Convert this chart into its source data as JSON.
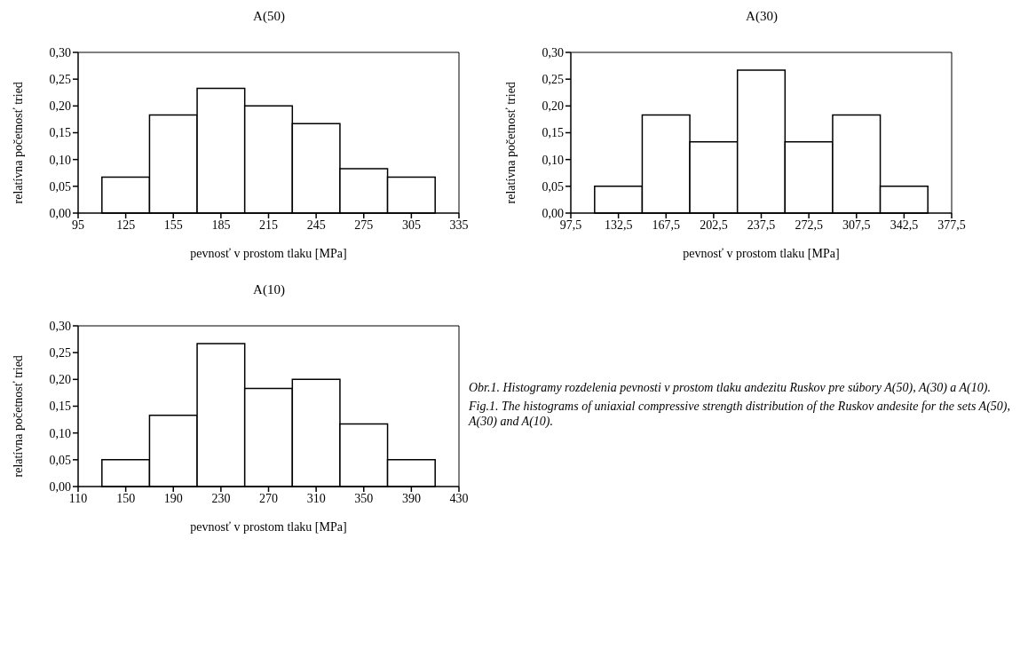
{
  "chart_data": [
    {
      "type": "histogram",
      "title": "A(50)",
      "xlabel": "pevnosť v prostom tlaku [MPa]",
      "ylabel": "relatívna početnosť tried",
      "bins": [
        110,
        140,
        170,
        200,
        230,
        260,
        290,
        320
      ],
      "values": [
        0.067,
        0.183,
        0.233,
        0.2,
        0.167,
        0.083,
        0.067
      ],
      "color": "#ffffff",
      "xlim": [
        95,
        335
      ],
      "xticks": [
        95,
        125,
        155,
        185,
        215,
        245,
        275,
        305,
        335
      ],
      "ylim": [
        0,
        0.3
      ],
      "yticks": [
        {
          "value": 0,
          "label": "0,00"
        },
        {
          "value": 0.05,
          "label": "0,05"
        },
        {
          "value": 0.1,
          "label": "0,10"
        },
        {
          "value": 0.15,
          "label": "0,15"
        },
        {
          "value": 0.2,
          "label": "0,20"
        },
        {
          "value": 0.25,
          "label": "0,25"
        },
        {
          "value": 0.3,
          "label": "0,30"
        }
      ],
      "grid": false
    },
    {
      "type": "histogram",
      "title": "A(30)",
      "xlabel": "pevnosť v prostom tlaku [MPa]",
      "ylabel": "relatívna početnosť tried",
      "bins": [
        115,
        150,
        185,
        220,
        255,
        290,
        325,
        360
      ],
      "values": [
        0.05,
        0.183,
        0.133,
        0.267,
        0.133,
        0.183,
        0.05
      ],
      "color": "#ffffff",
      "xlim": [
        97.5,
        377.5
      ],
      "xticks": [
        {
          "value": 97.5,
          "label": "97,5"
        },
        {
          "value": 132.5,
          "label": "132,5"
        },
        {
          "value": 167.5,
          "label": "167,5"
        },
        {
          "value": 202.5,
          "label": "202,5"
        },
        {
          "value": 237.5,
          "label": "237,5"
        },
        {
          "value": 272.5,
          "label": "272,5"
        },
        {
          "value": 307.5,
          "label": "307,5"
        },
        {
          "value": 342.5,
          "label": "342,5"
        },
        {
          "value": 377.5,
          "label": "377,5"
        }
      ],
      "ylim": [
        0,
        0.3
      ],
      "yticks": [
        {
          "value": 0,
          "label": "0,00"
        },
        {
          "value": 0.05,
          "label": "0,05"
        },
        {
          "value": 0.1,
          "label": "0,10"
        },
        {
          "value": 0.15,
          "label": "0,15"
        },
        {
          "value": 0.2,
          "label": "0,20"
        },
        {
          "value": 0.25,
          "label": "0,25"
        },
        {
          "value": 0.3,
          "label": "0,30"
        }
      ],
      "grid": false
    },
    {
      "type": "histogram",
      "title": "A(10)",
      "xlabel": "pevnosť v prostom tlaku [MPa]",
      "ylabel": "relatívna početnosť tried",
      "bins": [
        130,
        170,
        210,
        250,
        290,
        330,
        370,
        410
      ],
      "values": [
        0.05,
        0.133,
        0.267,
        0.183,
        0.2,
        0.117,
        0.05
      ],
      "color": "#ffffff",
      "xlim": [
        110,
        430
      ],
      "xticks": [
        110,
        150,
        190,
        230,
        270,
        310,
        350,
        390,
        430
      ],
      "ylim": [
        0,
        0.3
      ],
      "yticks": [
        {
          "value": 0,
          "label": "0,00"
        },
        {
          "value": 0.05,
          "label": "0,05"
        },
        {
          "value": 0.1,
          "label": "0,10"
        },
        {
          "value": 0.15,
          "label": "0,15"
        },
        {
          "value": 0.2,
          "label": "0,20"
        },
        {
          "value": 0.25,
          "label": "0,25"
        },
        {
          "value": 0.3,
          "label": "0,30"
        }
      ],
      "grid": false,
      "annotations": [
        "Obr.1.  Histogramy rozdelenia pevnosti v prostom tlaku andezitu Ruskov pre súbory A(50), A(30) a A(10).",
        "Fig.1.  The histograms of uniaxial compressive strength distribution of the Ruskov andesite for the sets A(50), A(30) and A(10)."
      ]
    }
  ]
}
